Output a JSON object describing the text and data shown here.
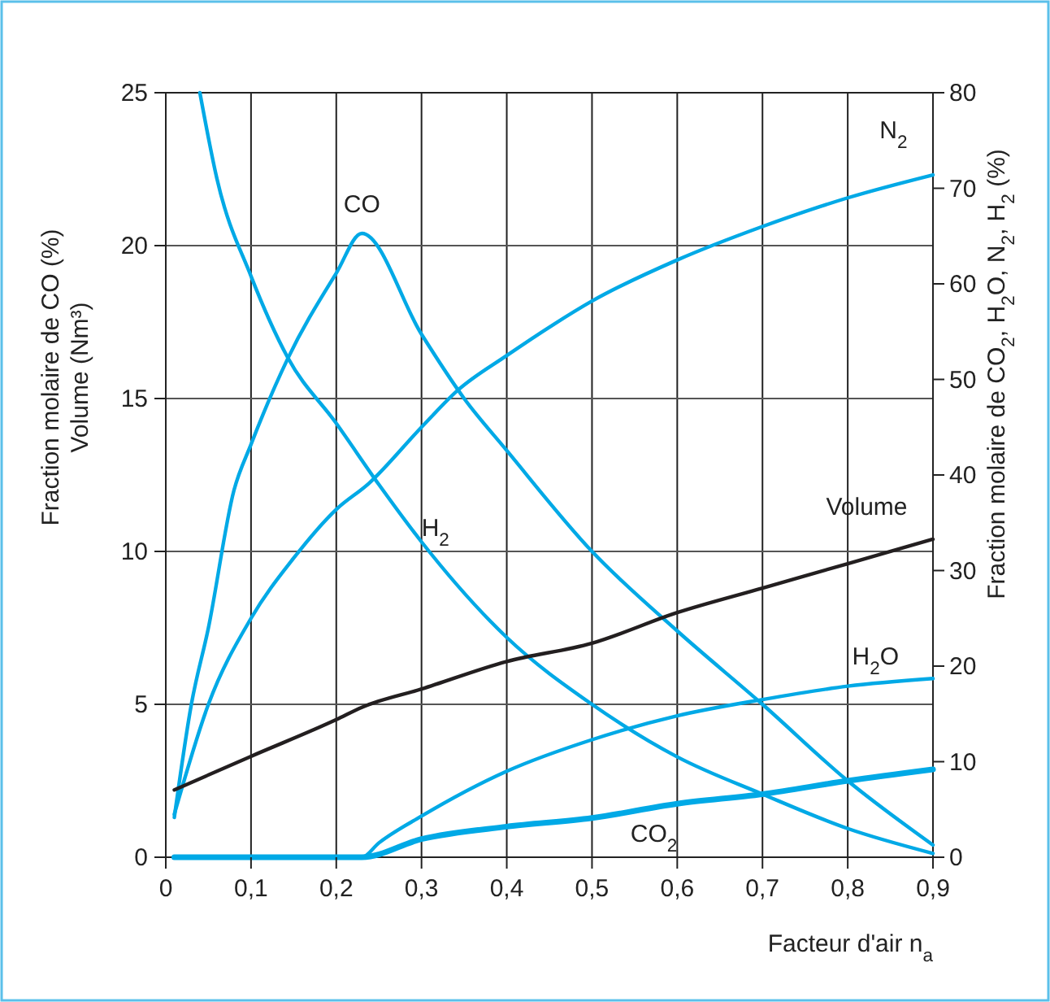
{
  "chart_data": {
    "type": "line",
    "xlabel": "Facteur d'air n$_{a}$",
    "ylabel": "Fraction molaire de CO (%)\nVolume (Nm³)",
    "y2label": "Fraction molaire de CO$_{2}$, H$_{2}$O, N$_{2}$, H$_{2}$ (%)",
    "xlim": [
      0,
      0.9
    ],
    "xticks": [
      0,
      {
        "value": 0.1,
        "label": "0,1"
      },
      {
        "value": 0.2,
        "label": "0,2"
      },
      {
        "value": 0.3,
        "label": "0,3"
      },
      {
        "value": 0.4,
        "label": "0,4"
      },
      {
        "value": 0.5,
        "label": "0,5"
      },
      {
        "value": 0.6,
        "label": "0,6"
      },
      {
        "value": 0.7,
        "label": "0,7"
      },
      {
        "value": 0.8,
        "label": "0,8"
      },
      {
        "value": 0.9,
        "label": "0,9"
      }
    ],
    "ylim": [
      0,
      25
    ],
    "yticks": [
      0,
      5,
      10,
      15,
      20,
      25
    ],
    "y2lim": [
      0,
      80
    ],
    "y2ticks": [
      0,
      10,
      20,
      30,
      40,
      50,
      60,
      70,
      80
    ],
    "grid": true,
    "marker": "none",
    "line_style": "solid",
    "series": [
      {
        "name": "CO",
        "color": "#00a9e6",
        "x": [
          0.01,
          0.03,
          0.05,
          0.08,
          0.1,
          0.143,
          0.2,
          0.23,
          0.3,
          0.35,
          0.4,
          0.5,
          0.6,
          0.7,
          0.8,
          0.9
        ],
        "values": [
          1.3,
          5,
          7.5,
          12,
          13.5,
          16.3,
          19.1,
          20.4,
          17.1,
          15,
          13.3,
          10,
          7.4,
          5,
          2.5,
          0.4
        ]
      },
      {
        "name": "H$_{2}$",
        "color": "#00a9e6",
        "axis": "y2",
        "x": [
          0.04,
          0.06,
          0.1,
          0.143,
          0.2,
          0.25,
          0.3,
          0.4,
          0.5,
          0.6,
          0.7,
          0.8,
          0.9
        ],
        "values": [
          80,
          71,
          60.8,
          52.3,
          45.4,
          39,
          33,
          23,
          16,
          10.5,
          6.6,
          3,
          0.4
        ]
      },
      {
        "name": "N$_{2}$",
        "color": "#00a9e6",
        "axis": "y2",
        "x": [
          0.01,
          0.05,
          0.1,
          0.15,
          0.2,
          0.238,
          0.3,
          0.343,
          0.4,
          0.454,
          0.5,
          0.6,
          0.7,
          0.8,
          0.9
        ],
        "values": [
          4.5,
          16,
          25,
          31.3,
          36.4,
          39.1,
          45,
          48.9,
          52.5,
          55.7,
          58.2,
          62.5,
          66,
          69,
          71.4
        ]
      },
      {
        "name": "Volume",
        "color": "#231f20",
        "x": [
          0.01,
          0.1,
          0.2,
          0.23,
          0.3,
          0.4,
          0.5,
          0.6,
          0.7,
          0.8,
          0.9
        ],
        "values": [
          2.2,
          3.3,
          4.5,
          4.9,
          5.5,
          6.4,
          7,
          8,
          8.8,
          9.6,
          10.4
        ]
      },
      {
        "name": "H$_{2}$O",
        "color": "#00a9e6",
        "axis": "y2",
        "x": [
          0.01,
          0.23,
          0.25,
          0.3,
          0.4,
          0.5,
          0.6,
          0.7,
          0.8,
          0.9
        ],
        "values": [
          0,
          0,
          1.5,
          4.3,
          9,
          12.3,
          14.8,
          16.5,
          17.9,
          18.7
        ]
      },
      {
        "name": "CO$_{2}$",
        "color": "#00a9e6",
        "axis": "y2",
        "x": [
          0.01,
          0.23,
          0.3,
          0.4,
          0.5,
          0.6,
          0.7,
          0.8,
          0.9
        ],
        "values": [
          0,
          0,
          1.9,
          3.2,
          4.1,
          5.6,
          6.6,
          8,
          9.2
        ]
      }
    ]
  }
}
